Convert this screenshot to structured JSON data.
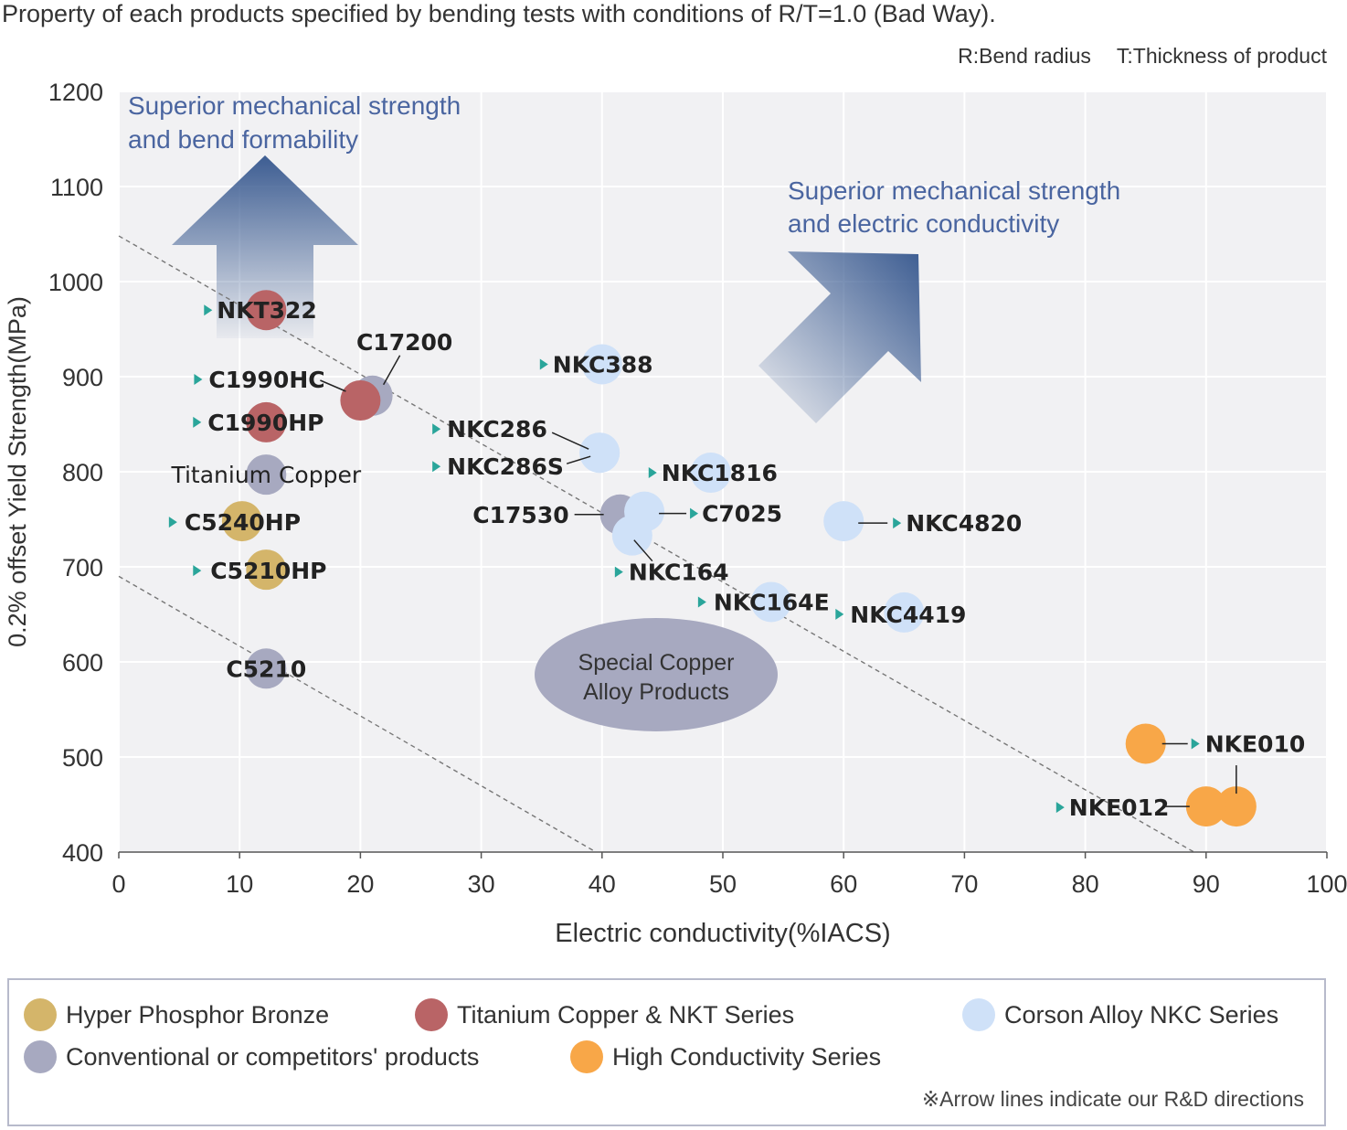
{
  "caption": "Property of each products specified by bending tests with conditions of R/T=1.0 (Bad Way).",
  "notes": {
    "r": "R:Bend radius",
    "t": "T:Thickness of product"
  },
  "colors": {
    "hyper": "#d4b56a",
    "titanium": "#b96466",
    "corson": "#cfe1f8",
    "conventional": "#a7a9c0",
    "high": "#f8a748",
    "arrowTeal": "#2aa59a",
    "arrowBlue": "#3d5d92",
    "plotBg": "#f1f1f3"
  },
  "chart_data": {
    "type": "scatter",
    "xlabel": "Electric conductivity(%IACS)",
    "ylabel": "0.2% offset Yield Strength(MPa)",
    "xlim": [
      0,
      100
    ],
    "ylim": [
      400,
      1200
    ],
    "xticks": [
      0,
      10,
      20,
      30,
      40,
      50,
      60,
      70,
      80,
      90,
      100
    ],
    "yticks": [
      400,
      500,
      600,
      700,
      800,
      900,
      1000,
      1100,
      1200
    ],
    "grid": true,
    "points": [
      {
        "label": "NKT322",
        "x": 12.2,
        "y": 970,
        "series": "titanium"
      },
      {
        "label": "C17200",
        "x": 21,
        "y": 880,
        "series": "conventional"
      },
      {
        "label": "C1990HC",
        "x": 20,
        "y": 875,
        "series": "titanium"
      },
      {
        "label": "C1990HP",
        "x": 12.2,
        "y": 852,
        "series": "titanium"
      },
      {
        "label": "Titanium Copper",
        "x": 12.2,
        "y": 797,
        "series": "conventional"
      },
      {
        "label": "C5240HP",
        "x": 10.2,
        "y": 748,
        "series": "hyper"
      },
      {
        "label": "C5210HP",
        "x": 12.2,
        "y": 697,
        "series": "hyper"
      },
      {
        "label": "C5210",
        "x": 12.2,
        "y": 593,
        "series": "conventional"
      },
      {
        "label": "NKC388",
        "x": 40,
        "y": 913,
        "series": "corson"
      },
      {
        "label": "NKC286",
        "x": 39.8,
        "y": 820,
        "series": "corson"
      },
      {
        "label": "NKC286S",
        "x": 39.8,
        "y": 820,
        "series": "corson"
      },
      {
        "label": "C17530",
        "x": 41.5,
        "y": 755,
        "series": "conventional"
      },
      {
        "label": "NKC164",
        "x": 42.5,
        "y": 733,
        "series": "corson"
      },
      {
        "label": "C7025",
        "x": 43.5,
        "y": 758,
        "series": "corson"
      },
      {
        "label": "NKC1816",
        "x": 49,
        "y": 799,
        "series": "corson"
      },
      {
        "label": "NKC4820",
        "x": 60,
        "y": 748,
        "series": "corson"
      },
      {
        "label": "NKC164E",
        "x": 54,
        "y": 663,
        "series": "corson"
      },
      {
        "label": "NKC4419",
        "x": 65,
        "y": 652,
        "series": "corson"
      },
      {
        "label": "NKE010",
        "x": 92.5,
        "y": 448,
        "series": "high"
      },
      {
        "label": "NKE010",
        "x": 85,
        "y": 514,
        "series": "high"
      },
      {
        "label": "NKE012",
        "x": 90,
        "y": 448,
        "series": "high"
      }
    ],
    "annotations": {
      "up": "Superior mechanical strength and bend formability",
      "upLines": [
        "Superior mechanical strength",
        "and bend formability"
      ],
      "diag": "Superior mechanical strength and electric conductivity",
      "diagLines": [
        "Superior mechanical strength",
        "and electric conductivity"
      ],
      "special": [
        "Special Copper",
        "Alloy Products"
      ]
    },
    "legend": [
      {
        "name": "Hyper Phosphor Bronze",
        "series": "hyper"
      },
      {
        "name": "Titanium Copper & NKT Series",
        "series": "titanium"
      },
      {
        "name": "Corson Alloy NKC Series",
        "series": "corson"
      },
      {
        "name": "Conventional or competitors' products",
        "series": "conventional"
      },
      {
        "name": "High Conductivity Series",
        "series": "high"
      }
    ]
  },
  "legendNote": "※Arrow lines indicate our R&D directions"
}
